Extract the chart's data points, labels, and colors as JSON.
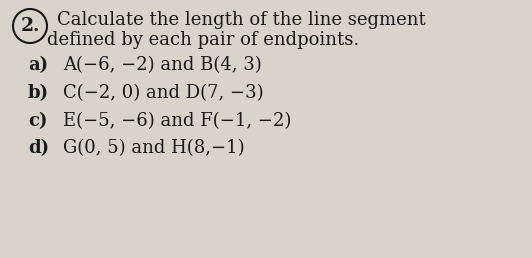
{
  "number": "2.",
  "title_line1": "Calculate the length of the line segment",
  "title_line2": "defined by each pair of endpoints.",
  "parts": [
    {
      "label": "a)",
      "text": "A(−6, −2) and B(4, 3)"
    },
    {
      "label": "b)",
      "text": "C(−2, 0) and D(7, −3)"
    },
    {
      "label": "c)",
      "text": "E(−5, −6) and F(−1, −2)"
    },
    {
      "label": "d)",
      "text": "G(0, 5) and H(8,−1)"
    }
  ],
  "bg_color": "#d8d4cc",
  "text_color": "#1a1a1a",
  "font_size_title": 13.0,
  "font_size_number": 13.5,
  "font_size_parts": 13.0
}
